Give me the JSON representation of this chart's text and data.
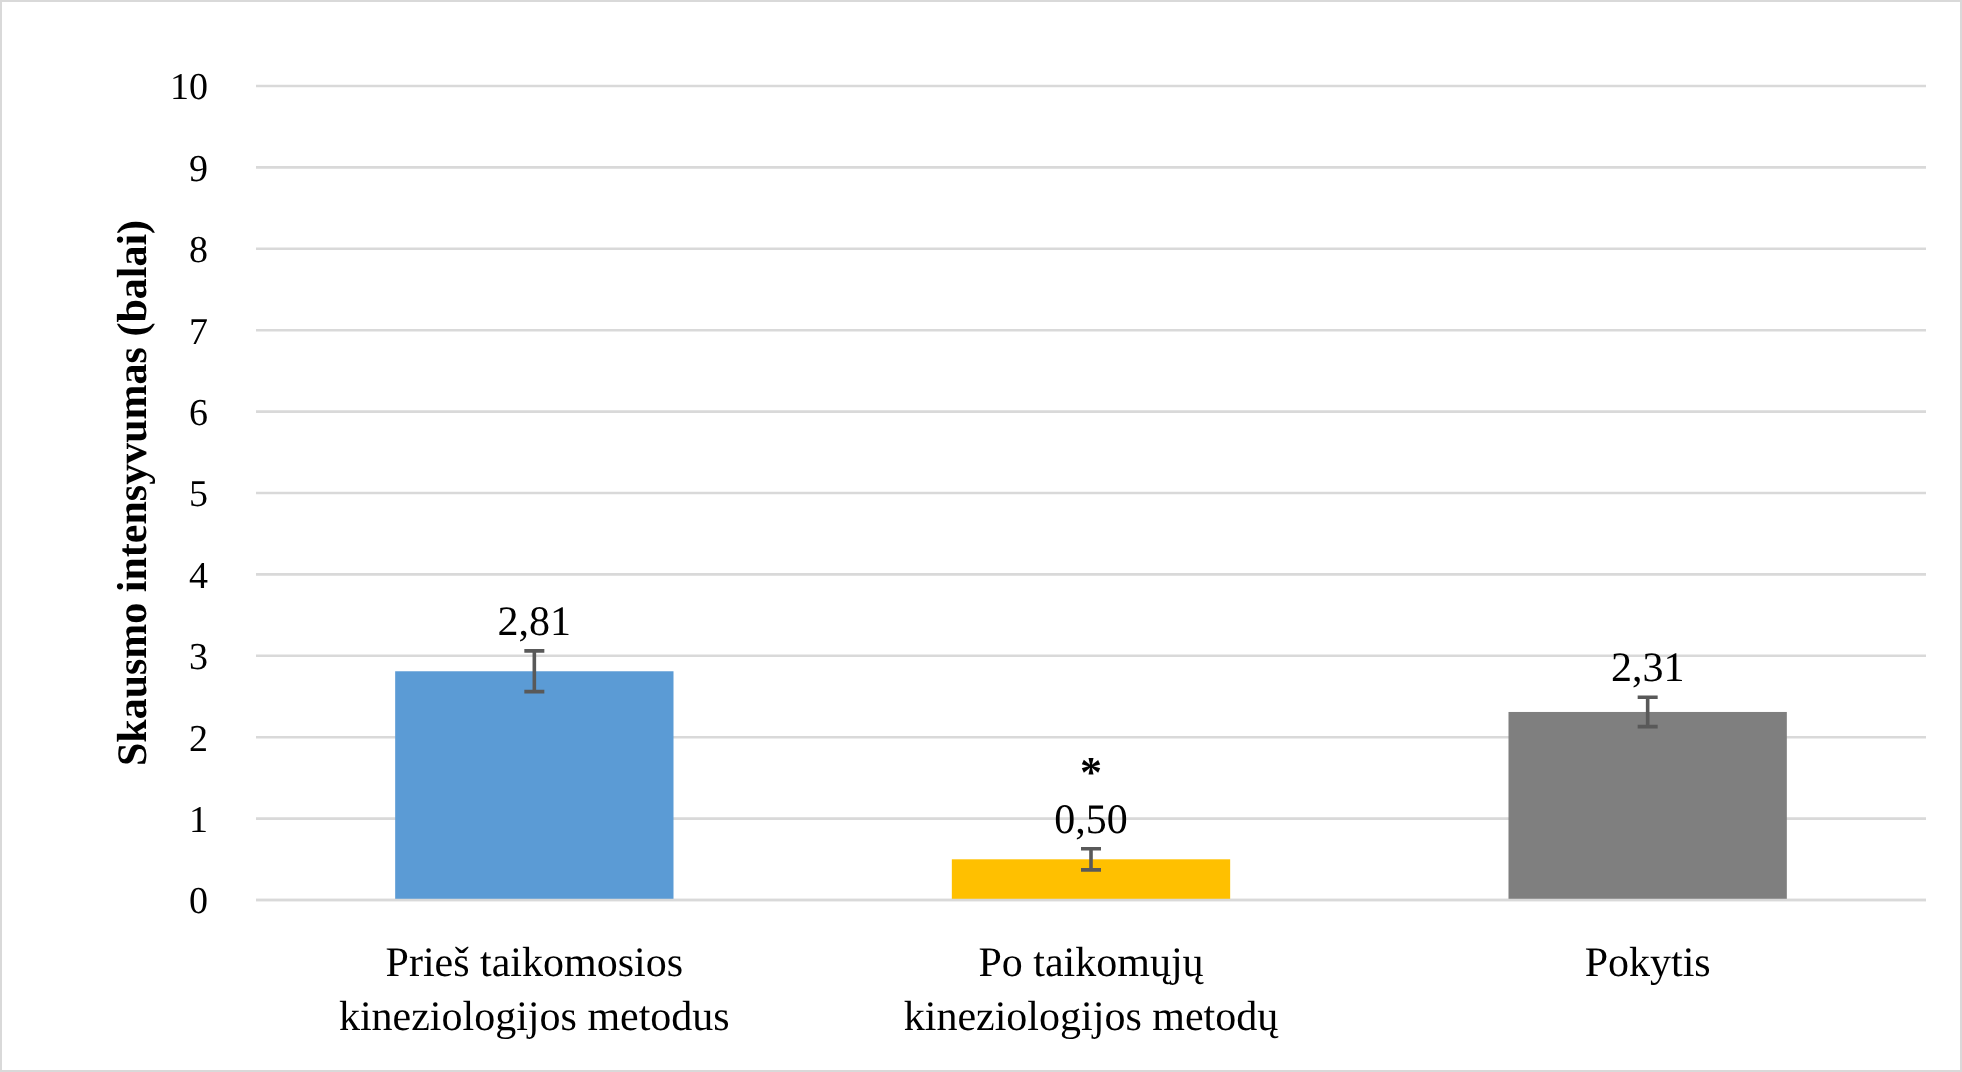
{
  "chart_data": {
    "type": "bar",
    "ylabel": "Skausmo intensyvumas (balai)",
    "categories": [
      "Prieš taikomosios kineziologijos metodus",
      "Po taikomųjų kineziologijos metodų",
      "Pokytis"
    ],
    "values": [
      2.81,
      0.5,
      2.31
    ],
    "colors": [
      "#5b9bd5",
      "#ffc000",
      "#7f7f7f"
    ],
    "errors": [
      0.25,
      0.13,
      0.18
    ],
    "value_labels": [
      "2,81",
      "0,50",
      "2,31"
    ],
    "annotations": [
      {
        "text": "*",
        "x": "Po taikomųjų kineziologijos metodų",
        "y": 0.5
      }
    ],
    "ylim": [
      0,
      10
    ],
    "yticks": [
      0,
      1,
      2,
      3,
      4,
      5,
      6,
      7,
      8,
      9,
      10
    ],
    "grid": "y"
  }
}
